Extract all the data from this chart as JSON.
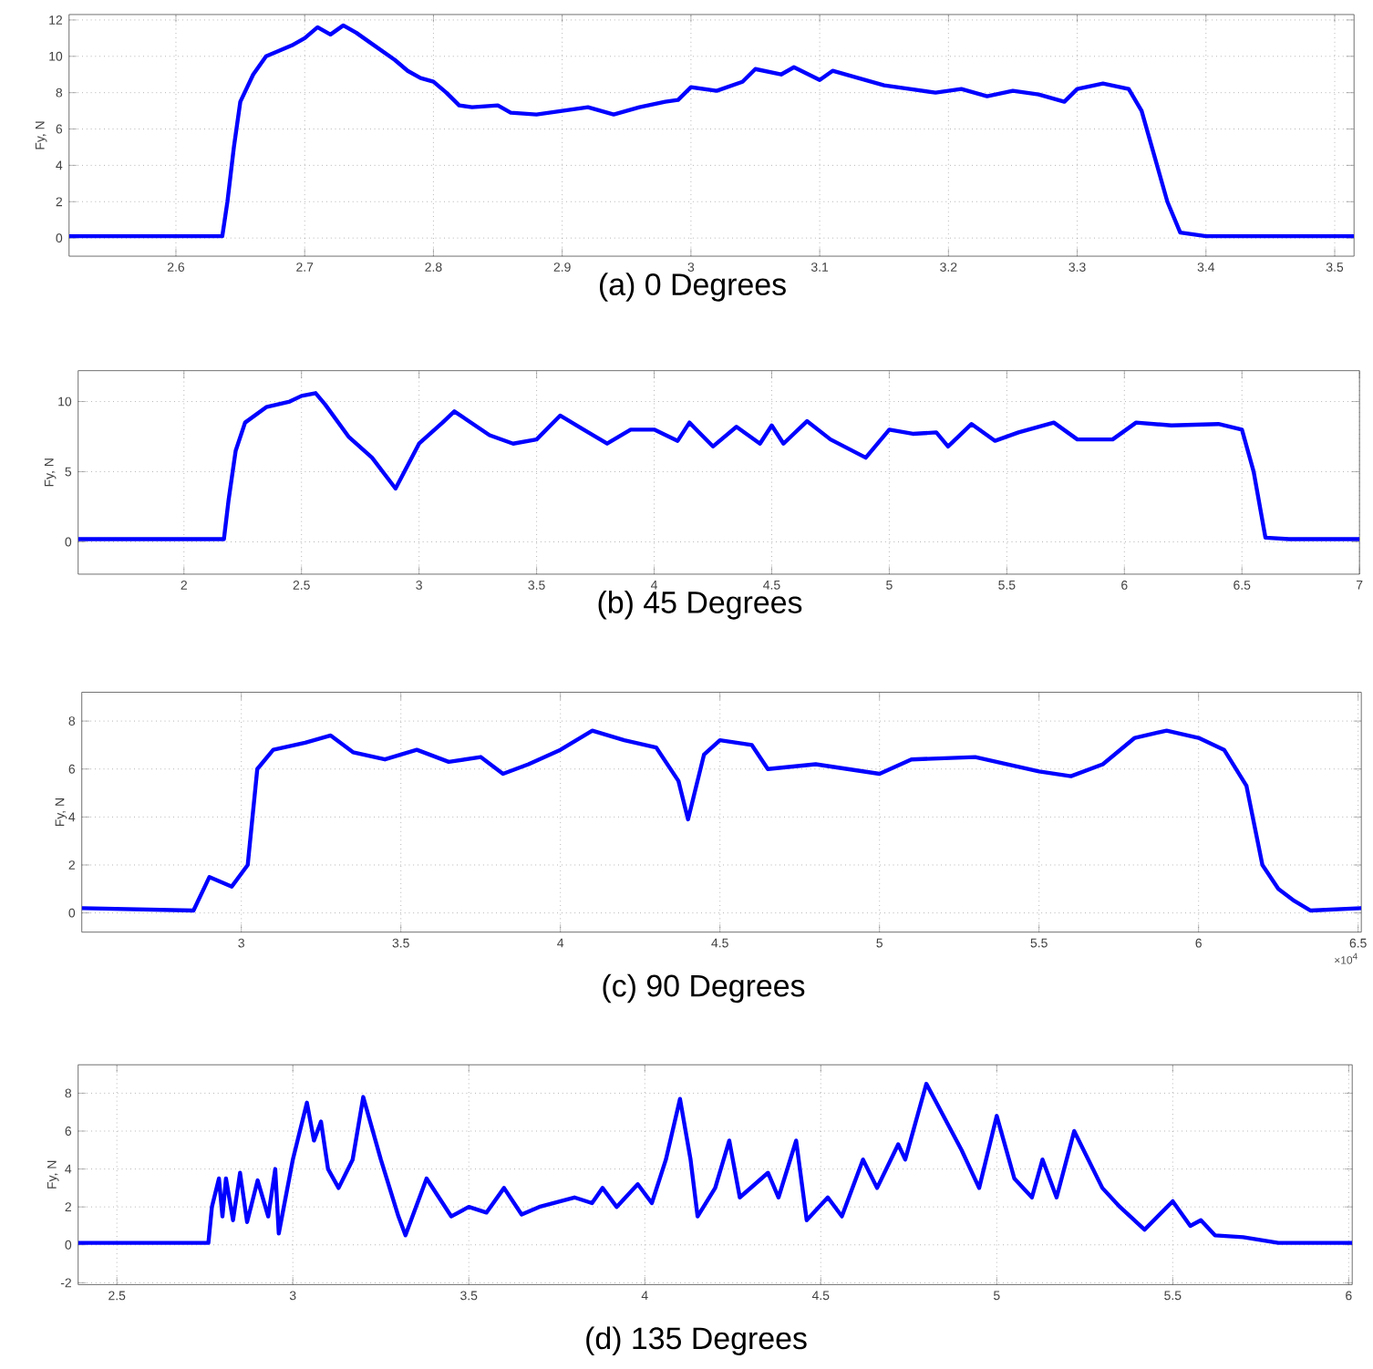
{
  "chart_data": [
    {
      "type": "line",
      "title": "(a) 0 Degrees",
      "ylabel": "Fy, N",
      "xlim": [
        2.517,
        3.515
      ],
      "ylim": [
        -1,
        12.3
      ],
      "xticks": [
        2.6,
        2.7,
        2.8,
        2.9,
        3,
        3.1,
        3.2,
        3.3,
        3.4,
        3.5
      ],
      "yticks": [
        0,
        2,
        4,
        6,
        8,
        10,
        12
      ],
      "grid": true,
      "color": "#0000ff",
      "x": [
        2.517,
        2.55,
        2.6,
        2.636,
        2.64,
        2.645,
        2.65,
        2.66,
        2.67,
        2.68,
        2.69,
        2.7,
        2.71,
        2.72,
        2.73,
        2.74,
        2.75,
        2.76,
        2.77,
        2.78,
        2.79,
        2.8,
        2.81,
        2.82,
        2.83,
        2.85,
        2.86,
        2.88,
        2.9,
        2.92,
        2.94,
        2.96,
        2.98,
        2.99,
        3.0,
        3.02,
        3.04,
        3.05,
        3.07,
        3.08,
        3.1,
        3.11,
        3.13,
        3.15,
        3.17,
        3.19,
        3.21,
        3.23,
        3.25,
        3.27,
        3.29,
        3.3,
        3.32,
        3.34,
        3.35,
        3.36,
        3.37,
        3.38,
        3.4,
        3.45,
        3.515
      ],
      "values": [
        0.1,
        0.1,
        0.1,
        0.1,
        2,
        5,
        7.5,
        9,
        10,
        10.3,
        10.6,
        11,
        11.6,
        11.2,
        11.7,
        11.3,
        10.8,
        10.3,
        9.8,
        9.2,
        8.8,
        8.6,
        8.0,
        7.3,
        7.2,
        7.3,
        6.9,
        6.8,
        7.0,
        7.2,
        6.8,
        7.2,
        7.5,
        7.6,
        8.3,
        8.1,
        8.6,
        9.3,
        9.0,
        9.4,
        8.7,
        9.2,
        8.8,
        8.4,
        8.2,
        8.0,
        8.2,
        7.8,
        8.1,
        7.9,
        7.5,
        8.2,
        8.5,
        8.2,
        7.0,
        4.5,
        2,
        0.3,
        0.1,
        0.1,
        0.1
      ]
    },
    {
      "type": "line",
      "title": "(b) 45 Degrees",
      "ylabel": "Fy, N",
      "xlim": [
        1.55,
        7.0
      ],
      "ylim": [
        -2.3,
        12.2
      ],
      "xticks": [
        2,
        2.5,
        3,
        3.5,
        4,
        4.5,
        5,
        5.5,
        6,
        6.5,
        7
      ],
      "yticks": [
        0,
        5,
        10
      ],
      "grid": true,
      "color": "#0000ff",
      "x": [
        1.55,
        2.17,
        2.19,
        2.22,
        2.26,
        2.35,
        2.45,
        2.5,
        2.56,
        2.6,
        2.7,
        2.8,
        2.9,
        3.0,
        3.1,
        3.15,
        3.3,
        3.4,
        3.5,
        3.6,
        3.7,
        3.8,
        3.9,
        4.0,
        4.1,
        4.15,
        4.25,
        4.35,
        4.45,
        4.5,
        4.55,
        4.65,
        4.75,
        4.9,
        5.0,
        5.1,
        5.2,
        5.25,
        5.35,
        5.45,
        5.55,
        5.7,
        5.8,
        5.95,
        6.05,
        6.2,
        6.4,
        6.5,
        6.55,
        6.6,
        6.7,
        7.0
      ],
      "values": [
        0.2,
        0.2,
        3,
        6.5,
        8.5,
        9.6,
        10.0,
        10.4,
        10.6,
        9.8,
        7.5,
        6,
        3.8,
        7.0,
        8.5,
        9.3,
        7.6,
        7.0,
        7.3,
        9.0,
        8.0,
        7.0,
        8.0,
        8.0,
        7.2,
        8.5,
        6.8,
        8.2,
        7.0,
        8.3,
        7.0,
        8.6,
        7.3,
        6.0,
        8.0,
        7.7,
        7.8,
        6.8,
        8.4,
        7.2,
        7.8,
        8.5,
        7.3,
        7.3,
        8.5,
        8.3,
        8.4,
        8.0,
        5,
        0.3,
        0.2,
        0.2
      ]
    },
    {
      "type": "line",
      "title": "(c) 90 Degrees",
      "ylabel": "Fy, N",
      "xlim": [
        2.5,
        6.51
      ],
      "ylim": [
        -0.8,
        9.2
      ],
      "xticks": [
        3,
        3.5,
        4,
        4.5,
        5,
        5.5,
        6,
        6.5
      ],
      "yticks": [
        0,
        2,
        4,
        6,
        8
      ],
      "grid": true,
      "color": "#0000ff",
      "annotations": [
        "×10$^{4}$"
      ],
      "x": [
        2.5,
        2.85,
        2.9,
        2.97,
        3.02,
        3.05,
        3.1,
        3.2,
        3.28,
        3.35,
        3.45,
        3.55,
        3.65,
        3.75,
        3.82,
        3.9,
        4.0,
        4.1,
        4.2,
        4.3,
        4.37,
        4.4,
        4.45,
        4.5,
        4.6,
        4.65,
        4.8,
        4.9,
        5.0,
        5.1,
        5.3,
        5.5,
        5.6,
        5.7,
        5.8,
        5.9,
        6.0,
        6.08,
        6.15,
        6.2,
        6.25,
        6.3,
        6.35,
        6.51
      ],
      "values": [
        0.2,
        0.1,
        1.5,
        1.1,
        2,
        6,
        6.8,
        7.1,
        7.4,
        6.7,
        6.4,
        6.8,
        6.3,
        6.5,
        5.8,
        6.2,
        6.8,
        7.6,
        7.2,
        6.9,
        5.5,
        3.9,
        6.6,
        7.2,
        7.0,
        6.0,
        6.2,
        6.0,
        5.8,
        6.4,
        6.5,
        5.9,
        5.7,
        6.2,
        7.3,
        7.6,
        7.3,
        6.8,
        5.3,
        2,
        1,
        0.5,
        0.1,
        0.2
      ]
    },
    {
      "type": "line",
      "title": "(d) 135 Degrees",
      "ylabel": "Fy, N",
      "xlim": [
        2.39,
        6.01
      ],
      "ylim": [
        -2.1,
        9.5
      ],
      "xticks": [
        2.5,
        3,
        3.5,
        4,
        4.5,
        5,
        5.5,
        6
      ],
      "yticks": [
        -2,
        0,
        2,
        4,
        6,
        8
      ],
      "grid": true,
      "color": "#0000ff",
      "x": [
        2.39,
        2.76,
        2.77,
        2.79,
        2.8,
        2.81,
        2.83,
        2.85,
        2.87,
        2.9,
        2.93,
        2.95,
        2.96,
        3.0,
        3.04,
        3.06,
        3.08,
        3.1,
        3.13,
        3.17,
        3.2,
        3.25,
        3.3,
        3.32,
        3.38,
        3.45,
        3.5,
        3.55,
        3.6,
        3.65,
        3.7,
        3.8,
        3.85,
        3.88,
        3.92,
        3.98,
        4.02,
        4.06,
        4.1,
        4.13,
        4.15,
        4.2,
        4.24,
        4.27,
        4.35,
        4.38,
        4.43,
        4.46,
        4.52,
        4.56,
        4.62,
        4.66,
        4.72,
        4.74,
        4.8,
        4.9,
        4.95,
        5.0,
        5.05,
        5.1,
        5.13,
        5.17,
        5.22,
        5.3,
        5.35,
        5.42,
        5.5,
        5.55,
        5.58,
        5.62,
        5.7,
        5.8,
        6.01
      ],
      "values": [
        0.1,
        0.1,
        2,
        3.5,
        1.5,
        3.5,
        1.3,
        3.8,
        1.2,
        3.4,
        1.5,
        4.0,
        0.6,
        4.5,
        7.5,
        5.5,
        6.5,
        4.0,
        3.0,
        4.5,
        7.8,
        4.5,
        1.5,
        0.5,
        3.5,
        1.5,
        2.0,
        1.7,
        3.0,
        1.6,
        2.0,
        2.5,
        2.2,
        3.0,
        2.0,
        3.2,
        2.2,
        4.5,
        7.7,
        4.5,
        1.5,
        3.0,
        5.5,
        2.5,
        3.8,
        2.5,
        5.5,
        1.3,
        2.5,
        1.5,
        4.5,
        3.0,
        5.3,
        4.5,
        8.5,
        5.0,
        3.0,
        6.8,
        3.5,
        2.5,
        4.5,
        2.5,
        6.0,
        3.0,
        2.0,
        0.8,
        2.3,
        1.0,
        1.3,
        0.5,
        0.4,
        0.1,
        0.1
      ]
    }
  ]
}
